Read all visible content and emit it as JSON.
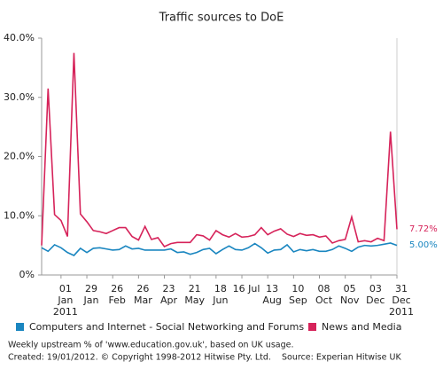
{
  "chart_data": {
    "type": "line",
    "title": "Traffic sources to DoE",
    "categories": [
      null,
      null,
      null,
      "01 Jan 2011",
      null,
      null,
      null,
      "29 Jan",
      null,
      null,
      null,
      "26 Feb",
      null,
      null,
      null,
      "26 Mar",
      null,
      null,
      null,
      "23 Apr",
      null,
      null,
      null,
      "21 May",
      null,
      null,
      null,
      "18 Jun",
      null,
      null,
      null,
      "16 Jul",
      null,
      null,
      null,
      "13 Aug",
      null,
      null,
      null,
      "10 Sep",
      null,
      null,
      null,
      "08 Oct",
      null,
      null,
      null,
      "05 Nov",
      null,
      null,
      null,
      "03 Dec",
      null,
      null,
      null,
      "31 Dec 2011"
    ],
    "series": [
      {
        "name": "Computers and Internet - Social Networking and Forums",
        "color": "#1a86c0",
        "values": [
          4.6,
          4.0,
          5.1,
          4.6,
          3.8,
          3.3,
          4.5,
          3.8,
          4.5,
          4.6,
          4.4,
          4.2,
          4.3,
          4.9,
          4.4,
          4.5,
          4.2,
          4.2,
          4.2,
          4.2,
          4.4,
          3.8,
          3.9,
          3.5,
          3.8,
          4.3,
          4.5,
          3.6,
          4.3,
          4.9,
          4.3,
          4.2,
          4.6,
          5.3,
          4.6,
          3.7,
          4.2,
          4.3,
          5.1,
          3.9,
          4.3,
          4.1,
          4.3,
          4.0,
          4.0,
          4.3,
          4.9,
          4.5,
          4.0,
          4.7,
          5.0,
          4.9,
          5.0,
          5.2,
          5.4,
          5.0
        ],
        "value_labels": [
          null,
          null,
          null,
          null,
          null,
          null,
          null,
          null,
          null,
          null,
          null,
          null,
          null,
          null,
          null,
          null,
          null,
          null,
          null,
          null,
          null,
          null,
          null,
          null,
          null,
          null,
          null,
          null,
          null,
          null,
          null,
          null,
          null,
          null,
          null,
          null,
          null,
          null,
          null,
          null,
          null,
          null,
          null,
          null,
          null,
          null,
          null,
          null,
          null,
          null,
          null,
          null,
          null,
          null,
          null,
          "5.00%"
        ]
      },
      {
        "name": "News and Media",
        "color": "#d6235a",
        "values": [
          5.0,
          31.5,
          10.2,
          9.2,
          6.5,
          37.5,
          10.3,
          9.0,
          7.5,
          7.3,
          7.0,
          7.5,
          8.0,
          8.0,
          6.5,
          5.9,
          8.2,
          6.0,
          6.3,
          4.8,
          5.3,
          5.5,
          5.5,
          5.5,
          6.8,
          6.6,
          5.9,
          7.5,
          6.8,
          6.4,
          7.0,
          6.4,
          6.5,
          6.8,
          8.0,
          6.8,
          7.4,
          7.8,
          6.9,
          6.5,
          7.0,
          6.7,
          6.8,
          6.4,
          6.6,
          5.4,
          5.8,
          6.0,
          9.8,
          5.6,
          5.8,
          5.6,
          6.2,
          5.8,
          24.2,
          7.72
        ],
        "value_labels": [
          null,
          null,
          null,
          null,
          null,
          null,
          null,
          null,
          null,
          null,
          null,
          null,
          null,
          null,
          null,
          null,
          null,
          null,
          null,
          null,
          null,
          null,
          null,
          null,
          null,
          null,
          null,
          null,
          null,
          null,
          null,
          null,
          null,
          null,
          null,
          null,
          null,
          null,
          null,
          null,
          null,
          null,
          null,
          null,
          null,
          null,
          null,
          null,
          null,
          null,
          null,
          null,
          null,
          null,
          null,
          "7.72%"
        ]
      }
    ],
    "ylim": [
      0,
      40
    ],
    "yticks": [
      {
        "value": 0,
        "label": "0%"
      },
      {
        "value": 10,
        "label": "10.0%"
      },
      {
        "value": 20,
        "label": "20.0%"
      },
      {
        "value": 30,
        "label": "30.0%"
      },
      {
        "value": 40,
        "label": "40.0%"
      }
    ],
    "grid": false,
    "legend": "bottom",
    "notes": [
      "Weekly upstream % of 'www.education.gov.uk', based on UK usage.",
      "Created: 19/01/2012. © Copyright 1998-2012 Hitwise Pty. Ltd.    Source: Experian Hitwise UK"
    ]
  }
}
